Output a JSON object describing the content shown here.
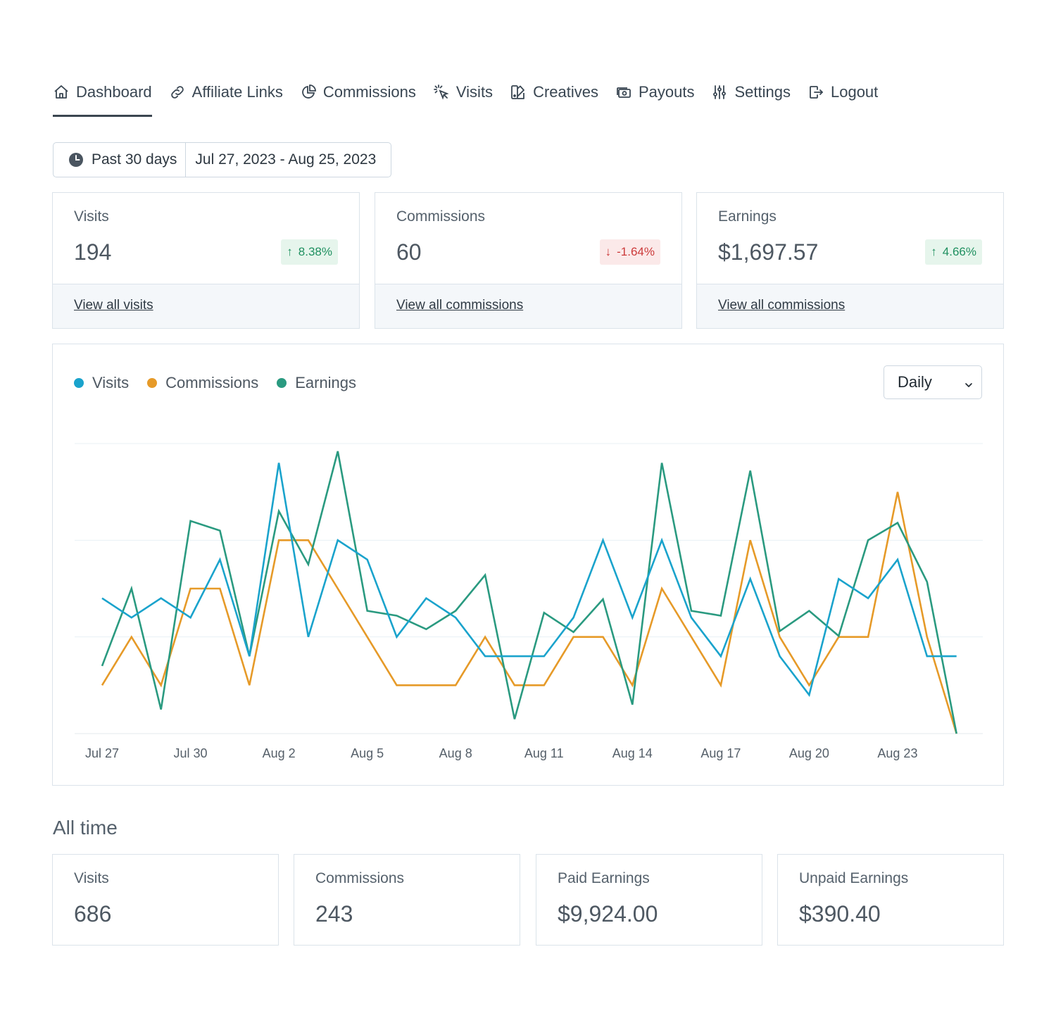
{
  "nav": {
    "items": [
      {
        "label": "Dashboard",
        "icon": "home-icon",
        "active": true
      },
      {
        "label": "Affiliate Links",
        "icon": "link-icon"
      },
      {
        "label": "Commissions",
        "icon": "pie-chart-icon"
      },
      {
        "label": "Visits",
        "icon": "cursor-click-icon"
      },
      {
        "label": "Creatives",
        "icon": "creatives-icon"
      },
      {
        "label": "Payouts",
        "icon": "cash-icon"
      },
      {
        "label": "Settings",
        "icon": "sliders-icon"
      },
      {
        "label": "Logout",
        "icon": "logout-icon"
      }
    ]
  },
  "date_range": {
    "preset": "Past 30 days",
    "range": "Jul 27, 2023 - Aug 25, 2023"
  },
  "stats": [
    {
      "label": "Visits",
      "value": "194",
      "change": "8.38%",
      "direction": "up",
      "link": "View all visits"
    },
    {
      "label": "Commissions",
      "value": "60",
      "change": "-1.64%",
      "direction": "down",
      "link": "View all commissions"
    },
    {
      "label": "Earnings",
      "value": "$1,697.57",
      "change": "4.66%",
      "direction": "up",
      "link": "View all commissions"
    }
  ],
  "chart": {
    "interval": "Daily"
  },
  "chart_data": {
    "type": "line",
    "x": [
      "Jul 27",
      "Jul 28",
      "Jul 29",
      "Jul 30",
      "Jul 31",
      "Aug 1",
      "Aug 2",
      "Aug 3",
      "Aug 4",
      "Aug 5",
      "Aug 6",
      "Aug 7",
      "Aug 8",
      "Aug 9",
      "Aug 10",
      "Aug 11",
      "Aug 12",
      "Aug 13",
      "Aug 14",
      "Aug 15",
      "Aug 16",
      "Aug 17",
      "Aug 18",
      "Aug 19",
      "Aug 20",
      "Aug 21",
      "Aug 22",
      "Aug 23",
      "Aug 24",
      "Aug 25"
    ],
    "x_tick_labels": [
      "Jul 27",
      "Jul 30",
      "Aug 2",
      "Aug 5",
      "Aug 8",
      "Aug 11",
      "Aug 14",
      "Aug 17",
      "Aug 20",
      "Aug 23"
    ],
    "ylim": [
      0,
      3
    ],
    "grid": true,
    "legend_position": "top-left",
    "series": [
      {
        "name": "Visits",
        "color": "#1aa3cc",
        "values": [
          1.4,
          1.2,
          1.4,
          1.2,
          1.8,
          0.8,
          2.8,
          1.0,
          2.0,
          1.8,
          1.0,
          1.4,
          1.2,
          0.8,
          0.8,
          0.8,
          1.2,
          2.0,
          1.2,
          2.0,
          1.2,
          0.8,
          1.6,
          0.8,
          0.4,
          1.6,
          1.4,
          1.8,
          0.8,
          0.8
        ]
      },
      {
        "name": "Commissions",
        "color": "#e69a28",
        "values": [
          0.5,
          1.0,
          0.5,
          1.5,
          1.5,
          0.5,
          2.0,
          2.0,
          1.5,
          1.0,
          0.5,
          0.5,
          0.5,
          1.0,
          0.5,
          0.5,
          1.0,
          1.0,
          0.5,
          1.5,
          1.0,
          0.5,
          2.0,
          1.0,
          0.5,
          1.0,
          1.0,
          2.5,
          1.0,
          0.0
        ]
      },
      {
        "name": "Earnings",
        "color": "#2a9a80",
        "values": [
          0.7,
          1.5,
          0.25,
          2.2,
          2.1,
          0.8,
          2.3,
          1.75,
          2.92,
          1.27,
          1.22,
          1.08,
          1.27,
          1.64,
          0.15,
          1.25,
          1.05,
          1.39,
          0.3,
          2.8,
          1.27,
          1.22,
          2.72,
          1.06,
          1.27,
          1.01,
          2.0,
          2.18,
          1.57,
          0.0
        ]
      }
    ]
  },
  "all_time": {
    "title": "All time",
    "cards": [
      {
        "label": "Visits",
        "value": "686"
      },
      {
        "label": "Commissions",
        "value": "243"
      },
      {
        "label": "Paid Earnings",
        "value": "$9,924.00"
      },
      {
        "label": "Unpaid Earnings",
        "value": "$390.40"
      }
    ]
  }
}
